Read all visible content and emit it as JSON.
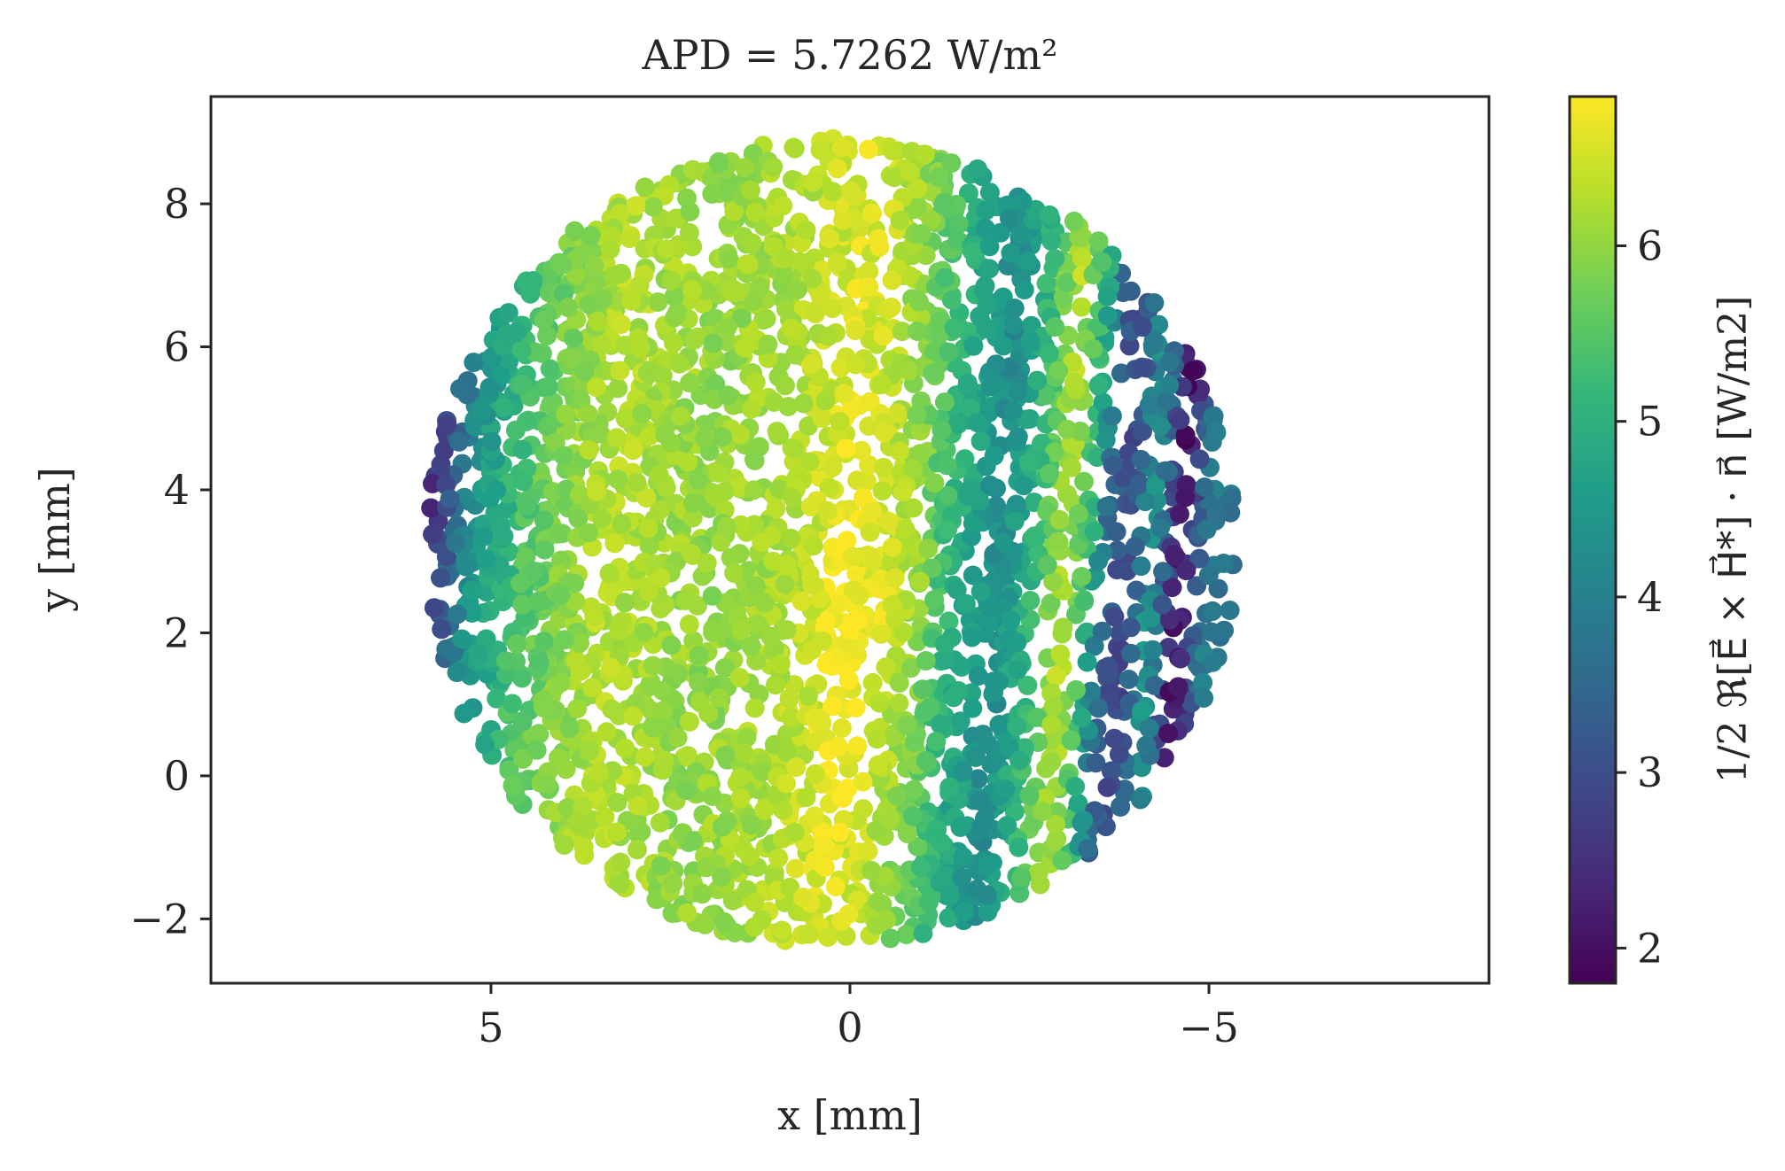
{
  "chart_data": {
    "type": "scatter",
    "title": "APD = 5.7262 W/m²",
    "xlabel": "x [mm]",
    "ylabel": "y [mm]",
    "colorbar_label": "1/2 ℜ[E⃗ × H⃗*] · n⃗ [W/m2]",
    "xlim": [
      8.9,
      -8.9
    ],
    "ylim": [
      -2.9,
      9.5
    ],
    "xticks": [
      5,
      0,
      -5
    ],
    "xtick_labels": [
      "5",
      "0",
      "−5"
    ],
    "yticks": [
      -2,
      0,
      2,
      4,
      6,
      8
    ],
    "ytick_labels": [
      "−2",
      "0",
      "2",
      "4",
      "6",
      "8"
    ],
    "clim": [
      1.8,
      6.85
    ],
    "cticks": [
      2,
      3,
      4,
      5,
      6
    ],
    "ctick_labels": [
      "2",
      "3",
      "4",
      "5",
      "6"
    ],
    "colormap": "viridis",
    "grid": false,
    "region": {
      "shape": "circle",
      "center_x_mm": 0.27,
      "center_y_mm": 3.27,
      "radius_mm": 5.65
    },
    "value_profile_along_x": {
      "x_mm": [
        5.9,
        5.3,
        4.5,
        3.4,
        2.0,
        1.0,
        0.0,
        -0.5,
        -1.0,
        -1.6,
        -2.1,
        -2.6,
        -3.0,
        -3.3,
        -3.6,
        -3.9,
        -4.2,
        -4.6,
        -5.0,
        -5.4
      ],
      "value_W_per_m2": [
        2.3,
        4.3,
        5.5,
        6.3,
        6.0,
        6.2,
        6.6,
        6.3,
        5.7,
        4.8,
        4.2,
        5.2,
        6.3,
        5.4,
        3.4,
        2.8,
        4.6,
        1.9,
        3.9,
        3.6
      ]
    },
    "points_sampled": 3200
  },
  "colors": {
    "axes": "#262626",
    "background": "#ffffff",
    "viridis_stops": [
      "#440154",
      "#482878",
      "#3e4989",
      "#31688e",
      "#26828e",
      "#1f9e89",
      "#35b779",
      "#6ece58",
      "#b5de2b",
      "#fde725"
    ]
  }
}
